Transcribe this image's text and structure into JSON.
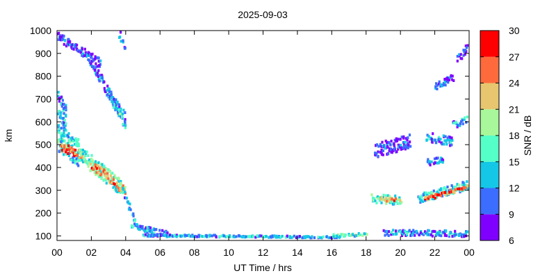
{
  "chart_data": {
    "type": "heatmap",
    "title": "2025-09-03",
    "xlabel": "UT Time / hrs",
    "ylabel": "km",
    "xlim": [
      0,
      24
    ],
    "ylim": [
      80,
      1000
    ],
    "xticks": [
      "00",
      "02",
      "04",
      "06",
      "08",
      "10",
      "12",
      "14",
      "16",
      "18",
      "20",
      "22",
      "00"
    ],
    "yticks": [
      "100",
      "200",
      "300",
      "400",
      "500",
      "600",
      "700",
      "800",
      "900",
      "1000"
    ],
    "colorbar": {
      "label": "SNR / dB",
      "range": [
        6,
        30
      ],
      "ticks": [
        "6",
        "9",
        "12",
        "15",
        "18",
        "21",
        "24",
        "27",
        "30"
      ],
      "colors": [
        "#7f00ff",
        "#3b6dff",
        "#14c7e6",
        "#55ffc8",
        "#a8f79a",
        "#e8c670",
        "#ff6a3c",
        "#ff0000"
      ]
    },
    "bands": [
      {
        "t0": 0.0,
        "t1": 1.2,
        "h0": 540,
        "h1": 470,
        "spread": 120,
        "snr": 16
      },
      {
        "t0": 0.2,
        "t1": 1.5,
        "h0": 490,
        "h1": 460,
        "spread": 40,
        "snr": 27
      },
      {
        "t0": 1.2,
        "t1": 3.8,
        "h0": 470,
        "h1": 310,
        "spread": 70,
        "snr": 19
      },
      {
        "t0": 2.0,
        "t1": 3.9,
        "h0": 420,
        "h1": 300,
        "spread": 40,
        "snr": 26
      },
      {
        "t0": 0.0,
        "t1": 0.5,
        "h0": 680,
        "h1": 620,
        "spread": 120,
        "snr": 13
      },
      {
        "t0": 1.8,
        "t1": 3.9,
        "h0": 880,
        "h1": 620,
        "spread": 50,
        "snr": 12
      },
      {
        "t0": 3.0,
        "t1": 3.9,
        "h0": 720,
        "h1": 600,
        "spread": 40,
        "snr": 16
      },
      {
        "t0": 0.0,
        "t1": 2.5,
        "h0": 980,
        "h1": 860,
        "spread": 40,
        "snr": 10
      },
      {
        "t0": 3.6,
        "t1": 3.9,
        "h0": 990,
        "h1": 920,
        "spread": 30,
        "snr": 13
      },
      {
        "t0": 3.8,
        "t1": 4.6,
        "h0": 300,
        "h1": 160,
        "spread": 30,
        "snr": 14
      },
      {
        "t0": 4.3,
        "t1": 6.5,
        "h0": 150,
        "h1": 110,
        "spread": 25,
        "snr": 14
      },
      {
        "t0": 5.0,
        "t1": 16.5,
        "h0": 108,
        "h1": 100,
        "spread": 8,
        "snr": 14
      },
      {
        "t0": 16.0,
        "t1": 18.0,
        "h0": 108,
        "h1": 112,
        "spread": 12,
        "snr": 18
      },
      {
        "t0": 18.3,
        "t1": 20.0,
        "h0": 270,
        "h1": 260,
        "spread": 40,
        "snr": 18
      },
      {
        "t0": 18.8,
        "t1": 20.0,
        "h0": 270,
        "h1": 258,
        "spread": 18,
        "snr": 25
      },
      {
        "t0": 21.0,
        "t1": 24.0,
        "h0": 270,
        "h1": 330,
        "spread": 40,
        "snr": 16
      },
      {
        "t0": 21.3,
        "t1": 24.0,
        "h0": 265,
        "h1": 325,
        "spread": 18,
        "snr": 27
      },
      {
        "t0": 18.5,
        "t1": 20.5,
        "h0": 480,
        "h1": 520,
        "spread": 60,
        "snr": 10
      },
      {
        "t0": 21.5,
        "t1": 23.0,
        "h0": 540,
        "h1": 520,
        "spread": 40,
        "snr": 13
      },
      {
        "t0": 21.5,
        "t1": 22.5,
        "h0": 430,
        "h1": 440,
        "spread": 30,
        "snr": 12
      },
      {
        "t0": 22.0,
        "t1": 23.0,
        "h0": 760,
        "h1": 800,
        "spread": 30,
        "snr": 11
      },
      {
        "t0": 23.0,
        "t1": 24.0,
        "h0": 590,
        "h1": 620,
        "spread": 30,
        "snr": 15
      },
      {
        "t0": 23.3,
        "t1": 24.0,
        "h0": 880,
        "h1": 950,
        "spread": 30,
        "snr": 12
      },
      {
        "t0": 19.0,
        "t1": 24.0,
        "h0": 120,
        "h1": 115,
        "spread": 25,
        "snr": 13
      }
    ]
  }
}
